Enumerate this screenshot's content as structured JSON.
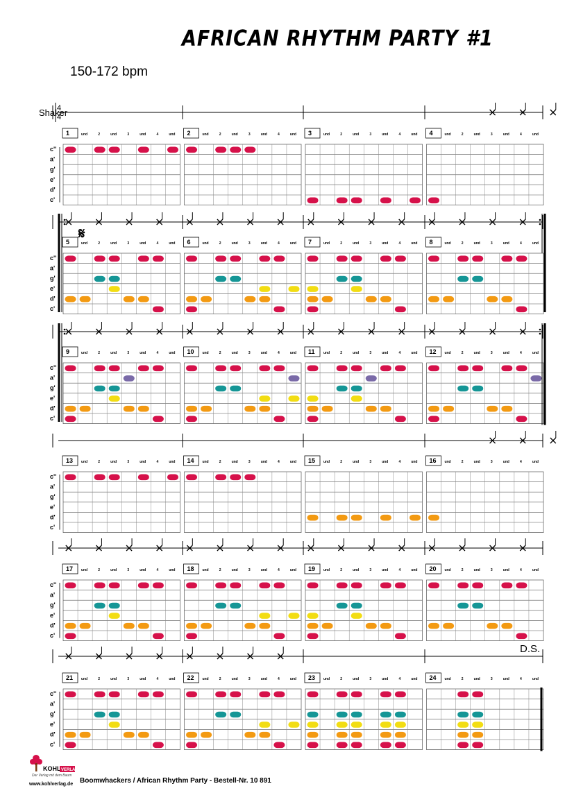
{
  "title": "AFRICAN RHYTHM PARTY #1",
  "tempo": "150-172 bpm",
  "instrument": "Shaker",
  "time_signature": {
    "top": "4",
    "bottom": "4"
  },
  "note_labels": [
    "c''",
    "a'",
    "g'",
    "e'",
    "d'",
    "c'"
  ],
  "beat_labels": [
    "und",
    "2",
    "und",
    "3",
    "und",
    "4",
    "und"
  ],
  "segno": "𝄋",
  "ds": "D.S.",
  "colors": {
    "c2": "#d6114a",
    "a1": "#7a6aa8",
    "g1": "#159696",
    "e1": "#f2dd13",
    "d1": "#f39a12",
    "c1": "#d6114a"
  },
  "rows": [
    {
      "shaker": [
        [],
        [],
        [],
        [
          4,
          6,
          8
        ]
      ],
      "repeat_start": false,
      "repeat_end": false,
      "end": false
    },
    {
      "shaker": [
        [
          0,
          2,
          4,
          6
        ],
        [
          0,
          2,
          4,
          6
        ],
        [
          0,
          2,
          4,
          6
        ],
        [
          0,
          2,
          4,
          6
        ]
      ],
      "repeat_start": true,
      "repeat_end": true,
      "end": false,
      "segno": true
    },
    {
      "shaker": [
        [
          0,
          2,
          4,
          6
        ],
        [
          0,
          2,
          4,
          6
        ],
        [
          0,
          2,
          4,
          6
        ],
        [
          0,
          2,
          4,
          6
        ]
      ],
      "repeat_start": true,
      "repeat_end": true,
      "end": true
    },
    {
      "shaker": [
        [],
        [],
        [],
        [
          4,
          6,
          8
        ]
      ],
      "repeat_start": false,
      "repeat_end": false,
      "end": false
    },
    {
      "shaker": [
        [
          0,
          2,
          4,
          6
        ],
        [
          0,
          2,
          4,
          6
        ],
        [
          0,
          2,
          4,
          6
        ],
        [
          0,
          2,
          4,
          6
        ]
      ],
      "repeat_start": false,
      "repeat_end": false,
      "end": false
    },
    {
      "shaker": [
        [
          0,
          2,
          4,
          6
        ],
        [
          0,
          2,
          4,
          6
        ],
        [],
        []
      ],
      "repeat_start": false,
      "repeat_end": false,
      "end": false,
      "ds": true
    }
  ],
  "measures": [
    {
      "n": "1",
      "notes": [
        [
          0,
          0
        ],
        [
          0,
          2
        ],
        [
          0,
          3
        ],
        [
          0,
          5
        ],
        [
          0,
          7
        ]
      ]
    },
    {
      "n": "2",
      "notes": [
        [
          0,
          0
        ],
        [
          0,
          2
        ],
        [
          0,
          3
        ],
        [
          0,
          4
        ]
      ]
    },
    {
      "n": "3",
      "notes": [
        [
          5,
          0
        ],
        [
          5,
          2
        ],
        [
          5,
          3
        ],
        [
          5,
          5
        ],
        [
          5,
          7
        ]
      ]
    },
    {
      "n": "4",
      "notes": [
        [
          5,
          0
        ]
      ]
    },
    {
      "n": "5",
      "notes": [
        [
          0,
          0
        ],
        [
          0,
          2
        ],
        [
          0,
          3
        ],
        [
          0,
          5
        ],
        [
          0,
          6
        ],
        [
          2,
          2
        ],
        [
          2,
          3
        ],
        [
          3,
          3
        ],
        [
          4,
          0
        ],
        [
          4,
          1
        ],
        [
          4,
          4
        ],
        [
          4,
          5
        ],
        [
          5,
          6
        ]
      ]
    },
    {
      "n": "6",
      "notes": [
        [
          0,
          0
        ],
        [
          0,
          2
        ],
        [
          0,
          3
        ],
        [
          0,
          5
        ],
        [
          0,
          6
        ],
        [
          2,
          2
        ],
        [
          2,
          3
        ],
        [
          3,
          5
        ],
        [
          3,
          7
        ],
        [
          4,
          0
        ],
        [
          4,
          1
        ],
        [
          4,
          4
        ],
        [
          4,
          5
        ],
        [
          5,
          0
        ],
        [
          5,
          6
        ]
      ]
    },
    {
      "n": "7",
      "notes": [
        [
          0,
          0
        ],
        [
          0,
          2
        ],
        [
          0,
          3
        ],
        [
          0,
          5
        ],
        [
          0,
          6
        ],
        [
          2,
          2
        ],
        [
          2,
          3
        ],
        [
          3,
          0
        ],
        [
          3,
          3
        ],
        [
          4,
          0
        ],
        [
          4,
          1
        ],
        [
          4,
          4
        ],
        [
          4,
          5
        ],
        [
          5,
          0
        ],
        [
          5,
          6
        ]
      ]
    },
    {
      "n": "8",
      "notes": [
        [
          0,
          0
        ],
        [
          0,
          2
        ],
        [
          0,
          3
        ],
        [
          0,
          5
        ],
        [
          0,
          6
        ],
        [
          2,
          2
        ],
        [
          2,
          3
        ],
        [
          4,
          0
        ],
        [
          4,
          1
        ],
        [
          4,
          4
        ],
        [
          4,
          5
        ],
        [
          5,
          6
        ]
      ]
    },
    {
      "n": "9",
      "notes": [
        [
          0,
          0
        ],
        [
          0,
          2
        ],
        [
          0,
          3
        ],
        [
          0,
          5
        ],
        [
          0,
          6
        ],
        [
          1,
          4
        ],
        [
          2,
          2
        ],
        [
          2,
          3
        ],
        [
          3,
          3
        ],
        [
          4,
          0
        ],
        [
          4,
          1
        ],
        [
          4,
          4
        ],
        [
          4,
          5
        ],
        [
          5,
          0
        ],
        [
          5,
          6
        ]
      ]
    },
    {
      "n": "10",
      "notes": [
        [
          0,
          0
        ],
        [
          0,
          2
        ],
        [
          0,
          3
        ],
        [
          0,
          5
        ],
        [
          0,
          6
        ],
        [
          1,
          7
        ],
        [
          2,
          2
        ],
        [
          2,
          3
        ],
        [
          3,
          5
        ],
        [
          3,
          7
        ],
        [
          4,
          0
        ],
        [
          4,
          1
        ],
        [
          4,
          4
        ],
        [
          4,
          5
        ],
        [
          5,
          0
        ],
        [
          5,
          6
        ]
      ]
    },
    {
      "n": "11",
      "notes": [
        [
          0,
          0
        ],
        [
          0,
          2
        ],
        [
          0,
          3
        ],
        [
          0,
          5
        ],
        [
          0,
          6
        ],
        [
          1,
          4
        ],
        [
          2,
          2
        ],
        [
          2,
          3
        ],
        [
          3,
          0
        ],
        [
          3,
          3
        ],
        [
          4,
          0
        ],
        [
          4,
          1
        ],
        [
          4,
          4
        ],
        [
          4,
          5
        ],
        [
          5,
          0
        ],
        [
          5,
          6
        ]
      ]
    },
    {
      "n": "12",
      "notes": [
        [
          0,
          0
        ],
        [
          0,
          2
        ],
        [
          0,
          3
        ],
        [
          0,
          5
        ],
        [
          0,
          6
        ],
        [
          1,
          7
        ],
        [
          2,
          2
        ],
        [
          2,
          3
        ],
        [
          4,
          0
        ],
        [
          4,
          1
        ],
        [
          4,
          4
        ],
        [
          4,
          5
        ],
        [
          5,
          0
        ],
        [
          5,
          6
        ]
      ]
    },
    {
      "n": "13",
      "notes": [
        [
          0,
          0
        ],
        [
          0,
          2
        ],
        [
          0,
          3
        ],
        [
          0,
          5
        ],
        [
          0,
          7
        ]
      ]
    },
    {
      "n": "14",
      "notes": [
        [
          0,
          0
        ],
        [
          0,
          2
        ],
        [
          0,
          3
        ],
        [
          0,
          4
        ]
      ]
    },
    {
      "n": "15",
      "notes": [
        [
          4,
          0
        ],
        [
          4,
          2
        ],
        [
          4,
          3
        ],
        [
          4,
          5
        ],
        [
          4,
          7
        ]
      ]
    },
    {
      "n": "16",
      "notes": [
        [
          4,
          0
        ]
      ]
    },
    {
      "n": "17",
      "notes": [
        [
          0,
          0
        ],
        [
          0,
          2
        ],
        [
          0,
          3
        ],
        [
          0,
          5
        ],
        [
          0,
          6
        ],
        [
          2,
          2
        ],
        [
          2,
          3
        ],
        [
          3,
          3
        ],
        [
          4,
          0
        ],
        [
          4,
          1
        ],
        [
          4,
          4
        ],
        [
          4,
          5
        ],
        [
          5,
          0
        ],
        [
          5,
          6
        ]
      ]
    },
    {
      "n": "18",
      "notes": [
        [
          0,
          0
        ],
        [
          0,
          2
        ],
        [
          0,
          3
        ],
        [
          0,
          5
        ],
        [
          0,
          6
        ],
        [
          2,
          2
        ],
        [
          2,
          3
        ],
        [
          3,
          5
        ],
        [
          3,
          7
        ],
        [
          4,
          0
        ],
        [
          4,
          1
        ],
        [
          4,
          4
        ],
        [
          4,
          5
        ],
        [
          5,
          0
        ],
        [
          5,
          6
        ]
      ]
    },
    {
      "n": "19",
      "notes": [
        [
          0,
          0
        ],
        [
          0,
          2
        ],
        [
          0,
          3
        ],
        [
          0,
          5
        ],
        [
          0,
          6
        ],
        [
          2,
          2
        ],
        [
          2,
          3
        ],
        [
          3,
          0
        ],
        [
          3,
          3
        ],
        [
          4,
          0
        ],
        [
          4,
          1
        ],
        [
          4,
          4
        ],
        [
          4,
          5
        ],
        [
          5,
          0
        ],
        [
          5,
          6
        ]
      ]
    },
    {
      "n": "20",
      "notes": [
        [
          0,
          0
        ],
        [
          0,
          2
        ],
        [
          0,
          3
        ],
        [
          0,
          5
        ],
        [
          0,
          6
        ],
        [
          2,
          2
        ],
        [
          2,
          3
        ],
        [
          4,
          0
        ],
        [
          4,
          1
        ],
        [
          4,
          4
        ],
        [
          4,
          5
        ],
        [
          5,
          6
        ]
      ]
    },
    {
      "n": "21",
      "notes": [
        [
          0,
          0
        ],
        [
          0,
          2
        ],
        [
          0,
          3
        ],
        [
          0,
          5
        ],
        [
          0,
          6
        ],
        [
          2,
          2
        ],
        [
          2,
          3
        ],
        [
          3,
          3
        ],
        [
          4,
          0
        ],
        [
          4,
          1
        ],
        [
          4,
          4
        ],
        [
          4,
          5
        ],
        [
          5,
          0
        ],
        [
          5,
          6
        ]
      ]
    },
    {
      "n": "22",
      "notes": [
        [
          0,
          0
        ],
        [
          0,
          2
        ],
        [
          0,
          3
        ],
        [
          0,
          5
        ],
        [
          0,
          6
        ],
        [
          2,
          2
        ],
        [
          2,
          3
        ],
        [
          3,
          5
        ],
        [
          3,
          7
        ],
        [
          4,
          0
        ],
        [
          4,
          1
        ],
        [
          4,
          4
        ],
        [
          4,
          5
        ],
        [
          5,
          0
        ],
        [
          5,
          6
        ]
      ]
    },
    {
      "n": "23",
      "notes": [
        [
          0,
          0
        ],
        [
          0,
          2
        ],
        [
          0,
          3
        ],
        [
          0,
          5
        ],
        [
          0,
          6
        ],
        [
          2,
          0
        ],
        [
          2,
          2
        ],
        [
          2,
          3
        ],
        [
          2,
          5
        ],
        [
          2,
          6
        ],
        [
          3,
          0
        ],
        [
          3,
          2
        ],
        [
          3,
          3
        ],
        [
          3,
          5
        ],
        [
          3,
          6
        ],
        [
          4,
          0
        ],
        [
          4,
          2
        ],
        [
          4,
          3
        ],
        [
          4,
          5
        ],
        [
          4,
          6
        ],
        [
          5,
          0
        ],
        [
          5,
          2
        ],
        [
          5,
          3
        ],
        [
          5,
          5
        ],
        [
          5,
          6
        ]
      ]
    },
    {
      "n": "24",
      "notes": [
        [
          0,
          2
        ],
        [
          0,
          3
        ],
        [
          2,
          2
        ],
        [
          2,
          3
        ],
        [
          3,
          2
        ],
        [
          3,
          3
        ],
        [
          4,
          2
        ],
        [
          4,
          3
        ],
        [
          5,
          2
        ],
        [
          5,
          3
        ]
      ]
    }
  ],
  "footer": {
    "logo_text": "KOHL",
    "logo_badge": "VERLAG",
    "tagline": "Der Verlag mit dem Baum",
    "url": "www.kohlverlag.de",
    "credit": "Boomwhackers / African Rhythm Party   -   Bestell-Nr. 10 891"
  }
}
